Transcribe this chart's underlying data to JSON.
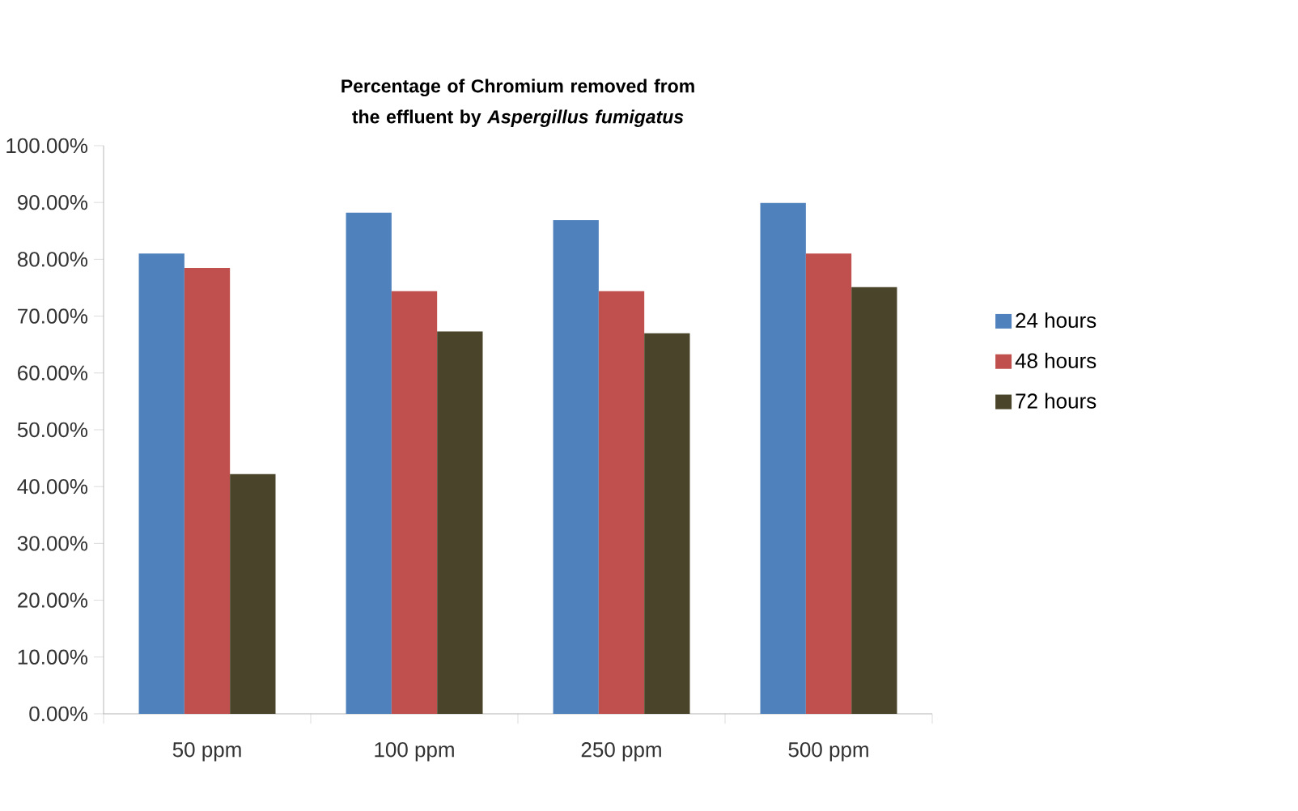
{
  "chart_data": {
    "type": "bar",
    "title": "Percentage of Chromium removed from the effluent by *Aspergillus fumigatus*",
    "categories": [
      "50 ppm",
      "100 ppm",
      "250 ppm",
      "500 ppm"
    ],
    "series": [
      {
        "name": "24 hours",
        "color": "#4f81bd",
        "values": [
          81.0,
          88.2,
          86.9,
          89.9
        ]
      },
      {
        "name": "48 hours",
        "color": "#c0504d",
        "values": [
          78.5,
          74.4,
          74.4,
          81.0
        ]
      },
      {
        "name": "72 hours",
        "color": "#4a452a",
        "values": [
          42.2,
          67.3,
          67.0,
          75.1
        ]
      }
    ],
    "ylim": [
      0,
      100
    ],
    "yticks": [
      {
        "value": 0,
        "label": "0.00%"
      },
      {
        "value": 10,
        "label": "10.00%"
      },
      {
        "value": 20,
        "label": "20.00%"
      },
      {
        "value": 30,
        "label": "30.00%"
      },
      {
        "value": 40,
        "label": "40.00%"
      },
      {
        "value": 50,
        "label": "50.00%"
      },
      {
        "value": 60,
        "label": "60.00%"
      },
      {
        "value": 70,
        "label": "70.00%"
      },
      {
        "value": 80,
        "label": "80.00%"
      },
      {
        "value": 90,
        "label": "90.00%"
      },
      {
        "value": 100,
        "label": "100.00%"
      }
    ],
    "grid": false,
    "legend": "right"
  }
}
